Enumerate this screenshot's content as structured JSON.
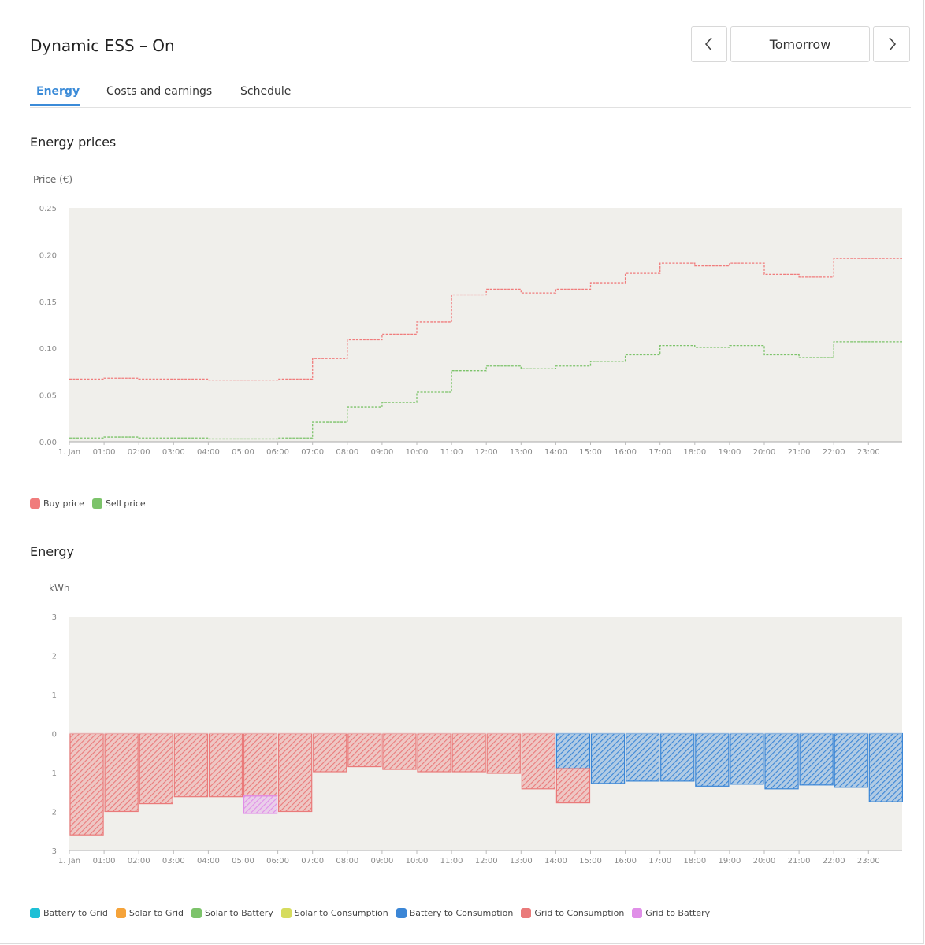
{
  "header": {
    "title": "Dynamic ESS – On"
  },
  "navigation": {
    "day_label": "Tomorrow",
    "prev_icon": "chevron-left-icon",
    "next_icon": "chevron-right-icon"
  },
  "tabs": [
    {
      "label": "Energy",
      "active": true
    },
    {
      "label": "Costs and earnings",
      "active": false
    },
    {
      "label": "Schedule",
      "active": false
    }
  ],
  "colors": {
    "accent": "#3b8bd8",
    "buy": "#f07c7c",
    "sell": "#7cc36a",
    "battery_to_grid": "#1ec0d6",
    "solar_to_grid": "#f5a33a",
    "solar_to_battery": "#7cc36a",
    "solar_to_consumption": "#d6dc5e",
    "battery_to_consumption": "#3b86d6",
    "grid_to_consumption": "#ea7a7a",
    "grid_to_battery": "#e08fe8",
    "plot_bg": "#f0efeb"
  },
  "prices": {
    "title": "Energy prices",
    "unit_label": "Price (€)",
    "chart_data": {
      "type": "line",
      "x": [
        "1. Jan",
        "01:00",
        "02:00",
        "03:00",
        "04:00",
        "05:00",
        "06:00",
        "07:00",
        "08:00",
        "09:00",
        "10:00",
        "11:00",
        "12:00",
        "13:00",
        "14:00",
        "15:00",
        "16:00",
        "17:00",
        "18:00",
        "19:00",
        "20:00",
        "21:00",
        "22:00",
        "23:00"
      ],
      "y_ticks": [
        "0.00",
        "0.05",
        "0.10",
        "0.15",
        "0.20",
        "0.25"
      ],
      "ylim": [
        0,
        0.25
      ],
      "series": [
        {
          "name": "Buy price",
          "color": "#f07c7c",
          "values": [
            0.067,
            0.068,
            0.067,
            0.067,
            0.066,
            0.066,
            0.067,
            0.089,
            0.109,
            0.115,
            0.128,
            0.157,
            0.163,
            0.159,
            0.163,
            0.17,
            0.18,
            0.191,
            0.188,
            0.191,
            0.179,
            0.176,
            0.196,
            0.196
          ]
        },
        {
          "name": "Sell price",
          "color": "#7cc36a",
          "values": [
            0.004,
            0.005,
            0.004,
            0.004,
            0.003,
            0.003,
            0.004,
            0.021,
            0.037,
            0.042,
            0.053,
            0.076,
            0.081,
            0.078,
            0.081,
            0.086,
            0.093,
            0.103,
            0.101,
            0.103,
            0.093,
            0.09,
            0.107,
            0.107
          ]
        }
      ]
    }
  },
  "energy": {
    "title": "Energy",
    "unit_label": "kWh",
    "chart_data": {
      "type": "bar",
      "stacked": true,
      "categories": [
        "1. Jan",
        "01:00",
        "02:00",
        "03:00",
        "04:00",
        "05:00",
        "06:00",
        "07:00",
        "08:00",
        "09:00",
        "10:00",
        "11:00",
        "12:00",
        "13:00",
        "14:00",
        "15:00",
        "16:00",
        "17:00",
        "18:00",
        "19:00",
        "20:00",
        "21:00",
        "22:00",
        "23:00"
      ],
      "y_ticks": [
        "3",
        "2",
        "1",
        "0",
        "1",
        "2",
        "3"
      ],
      "ylim": [
        -3,
        3
      ],
      "series": [
        {
          "name": "Battery to Grid",
          "color": "#1ec0d6",
          "values": [
            0,
            0,
            0,
            0,
            0,
            0,
            0,
            0,
            0,
            0,
            0,
            0,
            0,
            0,
            0,
            0,
            0,
            0,
            0,
            0,
            0,
            0,
            0,
            0
          ]
        },
        {
          "name": "Solar to Grid",
          "color": "#f5a33a",
          "values": [
            0,
            0,
            0,
            0,
            0,
            0,
            0,
            0,
            0,
            0,
            0,
            0,
            0,
            0,
            0,
            0,
            0,
            0,
            0,
            0,
            0,
            0,
            0,
            0
          ]
        },
        {
          "name": "Solar to Battery",
          "color": "#7cc36a",
          "values": [
            0,
            0,
            0,
            0,
            0,
            0,
            0,
            0,
            0,
            0,
            0,
            0,
            0,
            0,
            0,
            0,
            0,
            0,
            0,
            0,
            0,
            0,
            0,
            0
          ]
        },
        {
          "name": "Solar to Consumption",
          "color": "#d6dc5e",
          "values": [
            0,
            0,
            0,
            0,
            0,
            0,
            0,
            0,
            0,
            0,
            0,
            0,
            0,
            0,
            0,
            0,
            0,
            0,
            0,
            0,
            0,
            0,
            0,
            0
          ]
        },
        {
          "name": "Battery to Consumption",
          "color": "#3b86d6",
          "values": [
            0,
            0,
            0,
            0,
            0,
            0,
            0,
            0,
            0,
            0,
            0,
            0,
            0,
            0,
            -0.9,
            -1.28,
            -1.22,
            -1.22,
            -1.35,
            -1.3,
            -1.42,
            -1.32,
            -1.38,
            -1.75
          ]
        },
        {
          "name": "Grid to Consumption",
          "color": "#ea7a7a",
          "values": [
            -2.6,
            -2.0,
            -1.8,
            -1.62,
            -1.62,
            -1.6,
            -2.0,
            -0.98,
            -0.85,
            -0.92,
            -0.98,
            -0.98,
            -1.02,
            -1.42,
            -0.88,
            0,
            0,
            0,
            0,
            0,
            0,
            0,
            0,
            0
          ]
        },
        {
          "name": "Grid to Battery",
          "color": "#e08fe8",
          "values": [
            0,
            0,
            0,
            0,
            0,
            -0.45,
            0,
            0,
            0,
            0,
            0,
            0,
            0,
            0,
            0,
            0,
            0,
            0,
            0,
            0,
            0,
            0,
            0,
            0
          ]
        }
      ]
    }
  }
}
